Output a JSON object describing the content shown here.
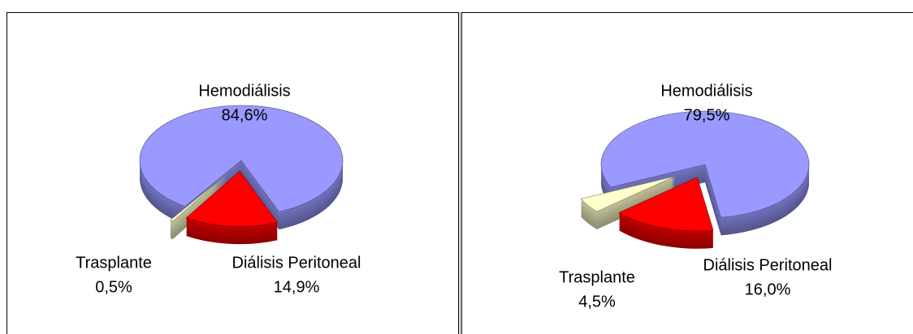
{
  "chart_data": [
    {
      "type": "pie",
      "categories": [
        "Hemodiálisis",
        "Diálisis Peritoneal",
        "Trasplante"
      ],
      "values": [
        84.6,
        14.9,
        0.5
      ],
      "value_labels": [
        "84,6%",
        "14,9%",
        "0,5%"
      ],
      "colors": [
        "#9999ff",
        "#ff0000",
        "#ffffcc"
      ]
    },
    {
      "type": "pie",
      "categories": [
        "Hemodiálisis",
        "Diálisis Peritoneal",
        "Trasplante"
      ],
      "values": [
        79.5,
        16.0,
        4.5
      ],
      "value_labels": [
        "79,5%",
        "16,0%",
        "4,5%"
      ],
      "colors": [
        "#9999ff",
        "#ff0000",
        "#ffffcc"
      ]
    }
  ]
}
